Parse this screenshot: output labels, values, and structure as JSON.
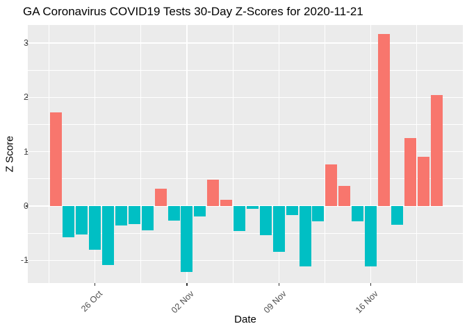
{
  "chart_data": {
    "type": "bar",
    "title": "GA Coronavirus COVID19 Tests 30-Day Z-Scores for 2020-11-21",
    "xlabel": "Date",
    "ylabel": "Z Score",
    "x_tick_labels": [
      "26 Oct",
      "02 Nov",
      "09 Nov",
      "16 Nov"
    ],
    "x_tick_day_index": [
      3,
      10,
      17,
      24
    ],
    "x_minor_day_index": [
      -0.5,
      6.5,
      13.5,
      20.5,
      27.5
    ],
    "y_tick_values": [
      3,
      2,
      1,
      0,
      -1
    ],
    "y_minor_values": [
      2.5,
      1.5,
      0.5,
      -0.5
    ],
    "ylim": [
      -1.42,
      3.33
    ],
    "grid": "on",
    "legend": "none",
    "dates": [
      "2020-10-23",
      "2020-10-24",
      "2020-10-25",
      "2020-10-26",
      "2020-10-27",
      "2020-10-28",
      "2020-10-29",
      "2020-10-30",
      "2020-10-31",
      "2020-11-01",
      "2020-11-02",
      "2020-11-03",
      "2020-11-04",
      "2020-11-05",
      "2020-11-06",
      "2020-11-07",
      "2020-11-08",
      "2020-11-09",
      "2020-11-10",
      "2020-11-11",
      "2020-11-12",
      "2020-11-13",
      "2020-11-14",
      "2020-11-15",
      "2020-11-16",
      "2020-11-17",
      "2020-11-18",
      "2020-11-19",
      "2020-11-20",
      "2020-11-21"
    ],
    "values": [
      1.73,
      -0.57,
      -0.52,
      -0.8,
      -1.09,
      -0.36,
      -0.33,
      -0.45,
      0.32,
      -0.27,
      -1.21,
      -0.19,
      0.48,
      0.11,
      -0.46,
      -0.05,
      -0.54,
      -0.84,
      -0.16,
      -1.11,
      -0.28,
      0.76,
      0.37,
      -0.28,
      -1.11,
      3.17,
      -0.35,
      1.25,
      0.91,
      2.04
    ],
    "positive_color": "#F8766D",
    "negative_color": "#00BFC4",
    "panel_background": "#EBEBEB",
    "gridline_color": "#FFFFFF",
    "axis_text_color": "#4D4D4D"
  }
}
